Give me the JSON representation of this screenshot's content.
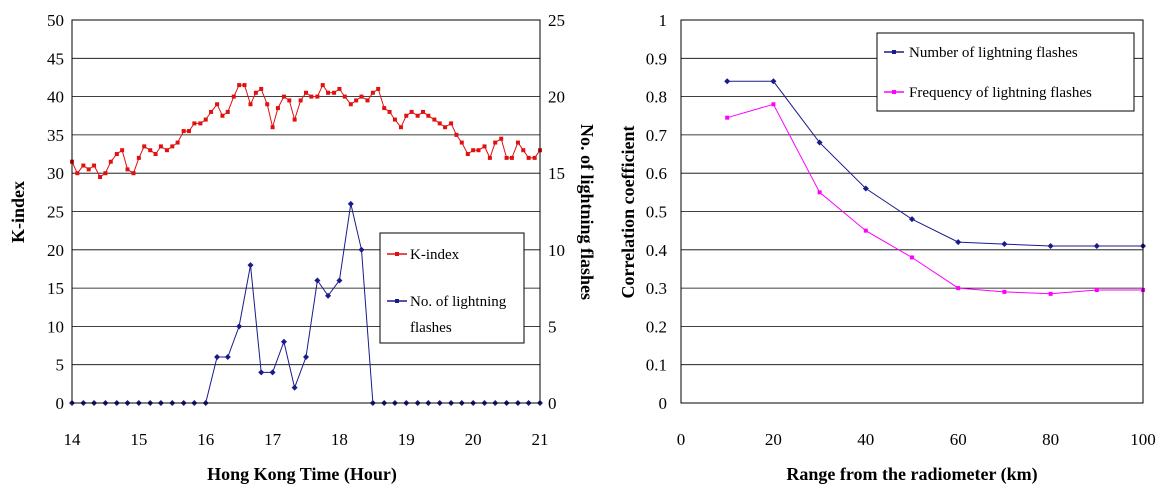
{
  "chart_data": [
    {
      "type": "line",
      "xlabel": "Hong Kong Time (Hour)",
      "ylabel": "K-index",
      "y2label": "No. of lightning flashes",
      "xlim": [
        14,
        21
      ],
      "ylim": [
        0,
        50
      ],
      "y2lim": [
        0,
        25
      ],
      "x_ticks": [
        "14",
        "15",
        "16",
        "17",
        "18",
        "19",
        "20",
        "21"
      ],
      "y_ticks": [
        "0",
        "5",
        "10",
        "15",
        "20",
        "25",
        "30",
        "35",
        "40",
        "45",
        "50"
      ],
      "y2_ticks": [
        "0",
        "5",
        "10",
        "15",
        "20",
        "25"
      ],
      "grid": true,
      "legend": "right",
      "colors": {
        "k_index": "#e01010",
        "lightning": "#1a1a8c"
      },
      "series": [
        {
          "name": "K-index",
          "axis": "left",
          "x": [
            14.0,
            14.08,
            14.17,
            14.25,
            14.33,
            14.42,
            14.5,
            14.58,
            14.67,
            14.75,
            14.83,
            14.92,
            15.0,
            15.08,
            15.17,
            15.25,
            15.33,
            15.42,
            15.5,
            15.58,
            15.67,
            15.75,
            15.83,
            15.92,
            16.0,
            16.08,
            16.17,
            16.25,
            16.33,
            16.42,
            16.5,
            16.58,
            16.67,
            16.75,
            16.83,
            16.92,
            17.0,
            17.08,
            17.17,
            17.25,
            17.33,
            17.42,
            17.5,
            17.58,
            17.67,
            17.75,
            17.83,
            17.92,
            18.0,
            18.08,
            18.17,
            18.25,
            18.33,
            18.42,
            18.5,
            18.58,
            18.67,
            18.75,
            18.83,
            18.92,
            19.0,
            19.08,
            19.17,
            19.25,
            19.33,
            19.42,
            19.5,
            19.58,
            19.67,
            19.75,
            19.83,
            19.92,
            20.0,
            20.08,
            20.17,
            20.25,
            20.33,
            20.42,
            20.5,
            20.58,
            20.67,
            20.75,
            20.83,
            20.92,
            21.0
          ],
          "values": [
            31.5,
            30,
            31,
            30.5,
            31,
            29.5,
            30,
            31.5,
            32.5,
            33,
            30.5,
            30,
            32,
            33.5,
            33,
            32.5,
            33.5,
            33,
            33.5,
            34,
            35.5,
            35.5,
            36.5,
            36.5,
            37,
            38,
            39,
            37.5,
            38,
            40,
            41.5,
            41.5,
            39,
            40.5,
            41,
            39,
            36,
            38.5,
            40,
            39.5,
            37,
            39.5,
            40.5,
            40,
            40,
            41.5,
            40.5,
            40.5,
            41,
            40,
            39,
            39.5,
            40,
            39.5,
            40.5,
            41,
            38.5,
            38,
            37,
            36,
            37.5,
            38,
            37.5,
            38,
            37.5,
            37,
            36.5,
            36,
            36.5,
            35,
            34,
            32.5,
            33,
            33,
            33.5,
            32,
            34,
            34.5,
            32,
            32,
            34,
            33,
            32,
            32,
            33
          ]
        },
        {
          "name": "No. of lightning flashes",
          "axis": "right",
          "x": [
            14.0,
            14.17,
            14.33,
            14.5,
            14.67,
            14.83,
            15.0,
            15.17,
            15.33,
            15.5,
            15.67,
            15.83,
            16.0,
            16.17,
            16.33,
            16.5,
            16.67,
            16.83,
            17.0,
            17.17,
            17.33,
            17.5,
            17.67,
            17.83,
            18.0,
            18.17,
            18.33,
            18.5,
            18.67,
            18.83,
            19.0,
            19.17,
            19.33,
            19.5,
            19.67,
            19.83,
            20.0,
            20.17,
            20.33,
            20.5,
            20.67,
            20.83,
            21.0
          ],
          "values": [
            0,
            0,
            0,
            0,
            0,
            0,
            0,
            0,
            0,
            0,
            0,
            0,
            0,
            3,
            3,
            5,
            9,
            2,
            2,
            4,
            1,
            3,
            8,
            7,
            8,
            13,
            10,
            0,
            0,
            0,
            0,
            0,
            0,
            0,
            0,
            0,
            0,
            0,
            0,
            0,
            0,
            0,
            0
          ]
        }
      ],
      "legend_entries": [
        "K-index",
        "No. of lightning",
        "flashes"
      ]
    },
    {
      "type": "line",
      "xlabel": "Range from the radiometer (km)",
      "ylabel": "Correlation coefficient",
      "xlim": [
        0,
        100
      ],
      "ylim": [
        0,
        1
      ],
      "x_ticks": [
        "0",
        "20",
        "40",
        "60",
        "80",
        "100"
      ],
      "y_ticks": [
        "0",
        "0.1",
        "0.2",
        "0.3",
        "0.4",
        "0.5",
        "0.6",
        "0.7",
        "0.8",
        "0.9",
        "1"
      ],
      "grid": true,
      "legend": "top-right",
      "colors": {
        "number": "#1a1a8c",
        "frequency": "#ff00ff"
      },
      "series": [
        {
          "name": "Number of lightning flashes",
          "x": [
            10,
            20,
            30,
            40,
            50,
            60,
            70,
            80,
            90,
            100
          ],
          "values": [
            0.84,
            0.84,
            0.68,
            0.56,
            0.48,
            0.42,
            0.415,
            0.41,
            0.41,
            0.41
          ]
        },
        {
          "name": "Frequency of lightning flashes",
          "x": [
            10,
            20,
            30,
            40,
            50,
            60,
            70,
            80,
            90,
            100
          ],
          "values": [
            0.745,
            0.78,
            0.55,
            0.45,
            0.38,
            0.3,
            0.29,
            0.285,
            0.295,
            0.295
          ]
        }
      ]
    }
  ]
}
